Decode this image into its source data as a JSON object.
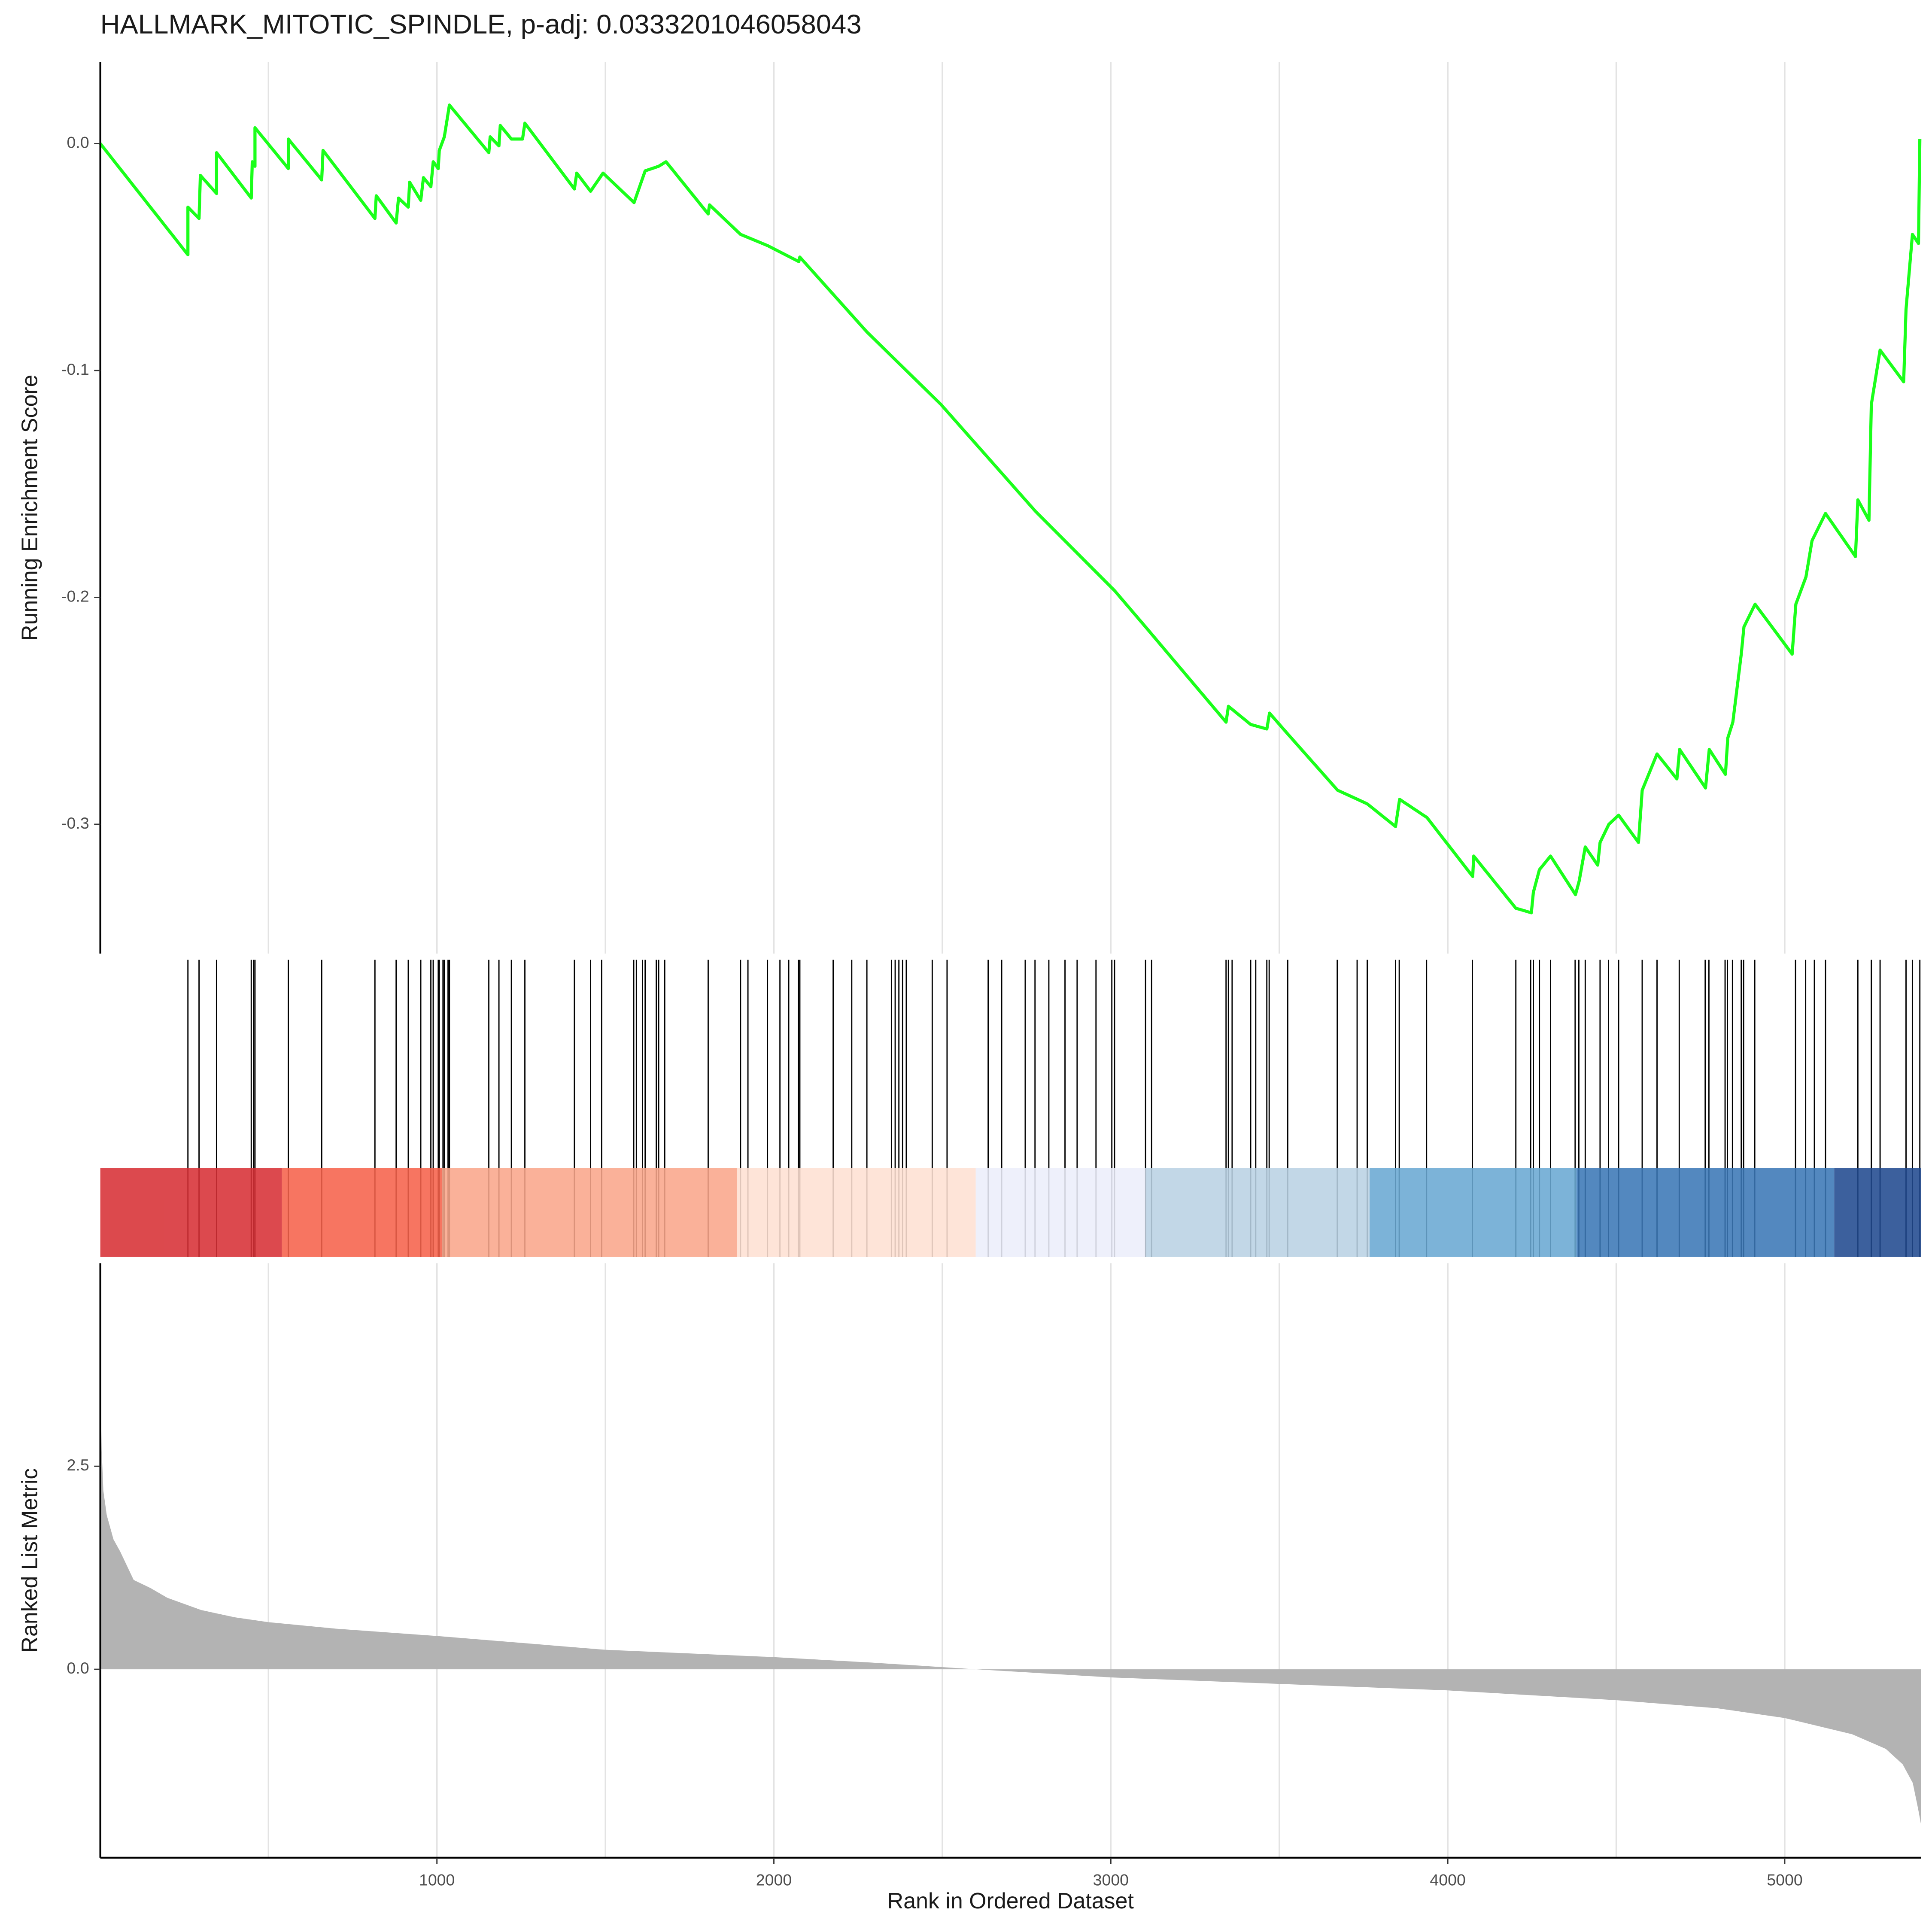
{
  "chart_data": [
    {
      "type": "line",
      "title": "HALLMARK_MITOTIC_SPINDLE, p-adj: 0.0333201046058043",
      "y_label": "Running Enrichment Score",
      "color": "#1aff1a",
      "xlim": [
        1,
        5404
      ],
      "ylim": [
        -0.357,
        0.036
      ],
      "yticks": [
        {
          "value": 0,
          "label": "0.0"
        },
        -0.1,
        -0.2,
        -0.3
      ],
      "xgrid": [
        500,
        1000,
        1500,
        2000,
        2500,
        3000,
        3500,
        4000,
        4500,
        5000
      ],
      "x": [
        1,
        261,
        261,
        294,
        298,
        346,
        346,
        449,
        452,
        460,
        460,
        559,
        559,
        658,
        662,
        816,
        820,
        879,
        886,
        915,
        919,
        952,
        960,
        982,
        989,
        1004,
        1007,
        1022,
        1037,
        1154,
        1158,
        1184,
        1188,
        1221,
        1254,
        1261,
        1408,
        1415,
        1456,
        1493,
        1585,
        1618,
        1658,
        1680,
        1805,
        1809,
        1901,
        1982,
        2074,
        2077,
        2276,
        2496,
        2776,
        3011,
        3103,
        3342,
        3349,
        3415,
        3463,
        3471,
        3518,
        3673,
        3732,
        3761,
        3845,
        3857,
        3938,
        4074,
        4077,
        4202,
        4248,
        4254,
        4272,
        4305,
        4379,
        4390,
        4408,
        4445,
        4452,
        4478,
        4507,
        4566,
        4577,
        4621,
        4680,
        4688,
        4765,
        4776,
        4824,
        4831,
        4846,
        4871,
        4879,
        4912,
        5022,
        5033,
        5063,
        5081,
        5121,
        5210,
        5217,
        5250,
        5257,
        5283,
        5353,
        5360,
        5379,
        5397,
        5401
      ],
      "values": [
        0,
        -0.049,
        -0.028,
        -0.033,
        -0.014,
        -0.022,
        -0.004,
        -0.024,
        -0.008,
        -0.01,
        0.007,
        -0.011,
        0.002,
        -0.016,
        -0.003,
        -0.033,
        -0.023,
        -0.035,
        -0.024,
        -0.028,
        -0.017,
        -0.025,
        -0.015,
        -0.019,
        -0.008,
        -0.011,
        -0.003,
        0.003,
        0.017,
        -0.004,
        0.003,
        -0.001,
        0.008,
        0.002,
        0.002,
        0.009,
        -0.02,
        -0.013,
        -0.021,
        -0.013,
        -0.026,
        -0.012,
        -0.01,
        -0.008,
        -0.031,
        -0.027,
        -0.04,
        -0.045,
        -0.052,
        -0.05,
        -0.083,
        -0.115,
        -0.162,
        -0.197,
        -0.213,
        -0.255,
        -0.248,
        -0.256,
        -0.258,
        -0.251,
        -0.259,
        -0.285,
        -0.289,
        -0.291,
        -0.301,
        -0.289,
        -0.297,
        -0.323,
        -0.314,
        -0.337,
        -0.339,
        -0.33,
        -0.32,
        -0.314,
        -0.331,
        -0.325,
        -0.31,
        -0.318,
        -0.308,
        -0.3,
        -0.296,
        -0.308,
        -0.285,
        -0.269,
        -0.28,
        -0.267,
        -0.284,
        -0.267,
        -0.278,
        -0.262,
        -0.255,
        -0.225,
        -0.213,
        -0.203,
        -0.225,
        -0.203,
        -0.191,
        -0.175,
        -0.163,
        -0.182,
        -0.157,
        -0.166,
        -0.115,
        -0.091,
        -0.105,
        -0.073,
        -0.04,
        -0.044,
        0.002
      ]
    },
    {
      "type": "barcode",
      "xlim": [
        1,
        5404
      ],
      "hits": [
        261,
        294,
        346,
        449,
        456,
        460,
        559,
        658,
        816,
        879,
        915,
        952,
        982,
        989,
        1004,
        1007,
        1018,
        1022,
        1033,
        1037,
        1154,
        1184,
        1221,
        1261,
        1408,
        1456,
        1489,
        1584,
        1592,
        1610,
        1618,
        1651,
        1658,
        1676,
        1805,
        1901,
        1923,
        1981,
        2018,
        2044,
        2073,
        2077,
        2176,
        2231,
        2276,
        2349,
        2360,
        2371,
        2382,
        2393,
        2470,
        2514,
        2636,
        2676,
        2746,
        2775,
        2816,
        2864,
        2900,
        2956,
        3003,
        3011,
        3103,
        3121,
        3342,
        3349,
        3360,
        3415,
        3430,
        3463,
        3470,
        3525,
        3672,
        3731,
        3761,
        3845,
        3856,
        3937,
        4073,
        4202,
        4246,
        4254,
        4272,
        4305,
        4378,
        4389,
        4408,
        4452,
        4477,
        4507,
        4577,
        4621,
        4687,
        4764,
        4775,
        4823,
        4830,
        4845,
        4871,
        4878,
        4911,
        5032,
        5062,
        5088,
        5121,
        5217,
        5257,
        5283,
        5360,
        5379,
        5401
      ],
      "band_edges": [
        1,
        540,
        1015,
        1890,
        2599,
        3103,
        3768,
        4382,
        5147,
        5404
      ],
      "band_colors": [
        "#d73035",
        "#f6624b",
        "#f9a68b",
        "#fee0d3",
        "#eceefb",
        "#b9d1e4",
        "#6aa8d3",
        "#3b78b6",
        "#214a8f"
      ]
    },
    {
      "type": "area",
      "y_label": "Ranked List Metric",
      "x_label": "Rank in Ordered Dataset",
      "color": "#b3b3b3",
      "xlim": [
        1,
        5404
      ],
      "ylim": [
        -2.32,
        5.0
      ],
      "xticks": [
        1000,
        2000,
        3000,
        4000,
        5000
      ],
      "yticks": [
        {
          "value": 0,
          "label": "0.0"
        },
        2.5
      ],
      "xgrid": [
        500,
        1000,
        1500,
        2000,
        2500,
        3000,
        3500,
        4000,
        4500,
        5000
      ],
      "x": [
        1,
        5,
        10,
        20,
        40,
        60,
        100,
        150,
        200,
        300,
        400,
        500,
        700,
        1000,
        1500,
        2000,
        2300,
        2600,
        3000,
        3500,
        4000,
        4500,
        4800,
        5000,
        5200,
        5300,
        5350,
        5380,
        5395,
        5404
      ],
      "values": [
        3.63,
        2.7,
        2.2,
        1.9,
        1.6,
        1.45,
        1.1,
        1.0,
        0.88,
        0.73,
        0.64,
        0.58,
        0.5,
        0.41,
        0.24,
        0.15,
        0.08,
        0,
        -0.1,
        -0.18,
        -0.26,
        -0.38,
        -0.48,
        -0.6,
        -0.8,
        -0.98,
        -1.17,
        -1.4,
        -1.7,
        -1.9
      ]
    }
  ]
}
